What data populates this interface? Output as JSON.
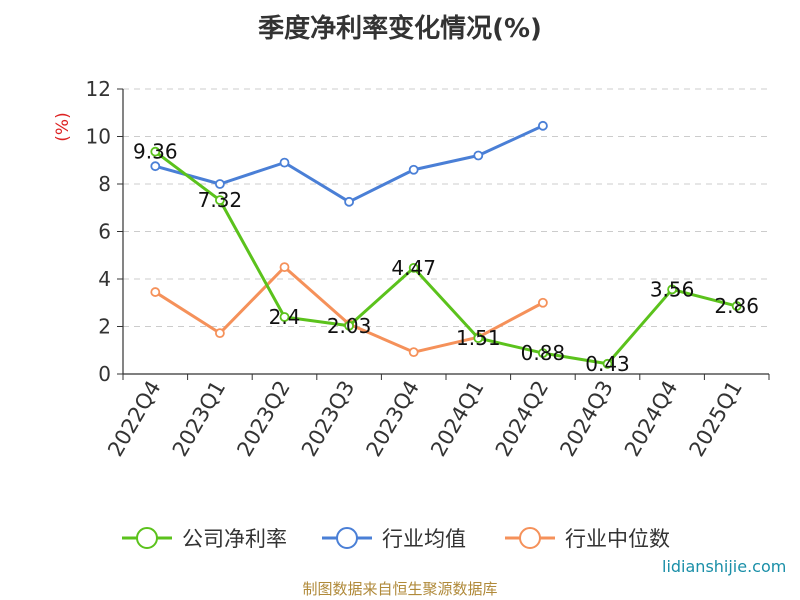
{
  "chart_data": {
    "type": "line",
    "title": "季度净利率变化情况(%)",
    "ylabel": "(%)",
    "xlabel": "",
    "ylim": [
      0,
      12
    ],
    "yticks": [
      0,
      2,
      4,
      6,
      8,
      10,
      12
    ],
    "grid": true,
    "legend_position": "bottom",
    "categories": [
      "2022Q4",
      "2023Q1",
      "2023Q2",
      "2023Q3",
      "2023Q4",
      "2024Q1",
      "2024Q2",
      "2024Q3",
      "2024Q4",
      "2025Q1"
    ],
    "series": [
      {
        "name": "公司净利率",
        "color": "#5bc21c",
        "labels": true,
        "values": [
          9.36,
          7.32,
          2.4,
          2.03,
          4.47,
          1.51,
          0.88,
          0.43,
          3.56,
          2.86
        ]
      },
      {
        "name": "行业均值",
        "color": "#4a7fd6",
        "labels": false,
        "values": [
          8.75,
          8.0,
          8.9,
          7.25,
          8.6,
          9.2,
          10.45,
          null,
          null,
          null
        ]
      },
      {
        "name": "行业中位数",
        "color": "#f5915a",
        "labels": false,
        "values": [
          3.45,
          1.72,
          4.5,
          2.1,
          0.92,
          1.55,
          3.0,
          null,
          null,
          null
        ]
      }
    ]
  },
  "footer": {
    "source": "制图数据来自恒生聚源数据库",
    "watermark": "lidianshijie.com"
  }
}
